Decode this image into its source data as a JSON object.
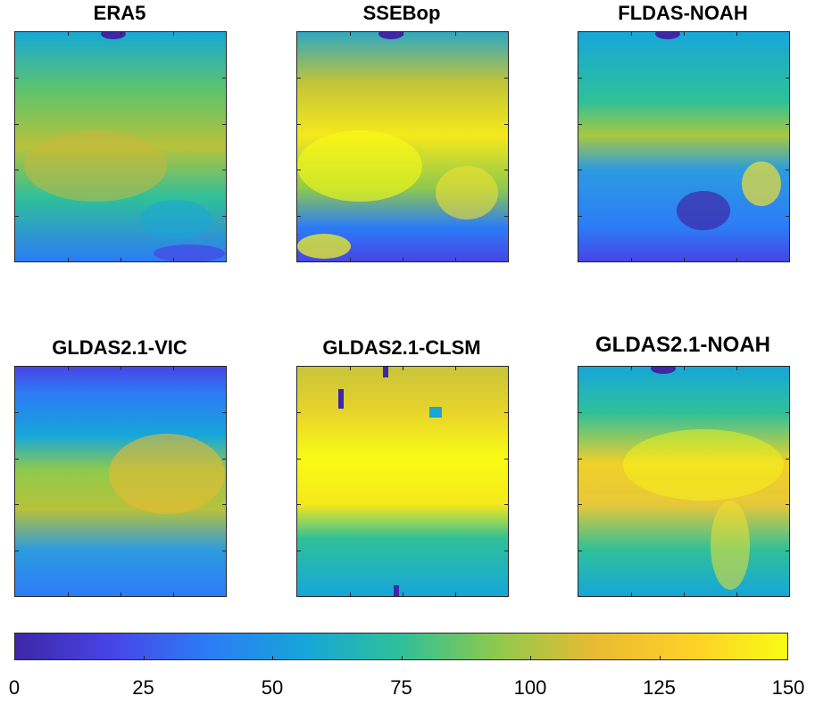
{
  "chart_data": [
    {
      "type": "heatmap",
      "title": "ERA5",
      "colorbar_range": [
        0,
        150
      ]
    },
    {
      "type": "heatmap",
      "title": "SSEBop",
      "colorbar_range": [
        0,
        150
      ]
    },
    {
      "type": "heatmap",
      "title": "FLDAS-NOAH",
      "colorbar_range": [
        0,
        150
      ]
    },
    {
      "type": "heatmap",
      "title": "GLDAS2.1-VIC",
      "colorbar_range": [
        0,
        150
      ]
    },
    {
      "type": "heatmap",
      "title": "GLDAS2.1-CLSM",
      "colorbar_range": [
        0,
        150
      ]
    },
    {
      "type": "heatmap",
      "title": "GLDAS2.1-NOAH",
      "colorbar_range": [
        0,
        150
      ]
    }
  ],
  "colorbar": {
    "colormap": "parula",
    "min": 0,
    "max": 150,
    "ticks": [
      "0",
      "25",
      "50",
      "75",
      "100",
      "125",
      "150"
    ],
    "colors": [
      "#3e26a8",
      "#4745e6",
      "#2c7cf6",
      "#16a6d9",
      "#2fc099",
      "#8fc94c",
      "#e8bb32",
      "#fdd028",
      "#f9fb14"
    ]
  }
}
